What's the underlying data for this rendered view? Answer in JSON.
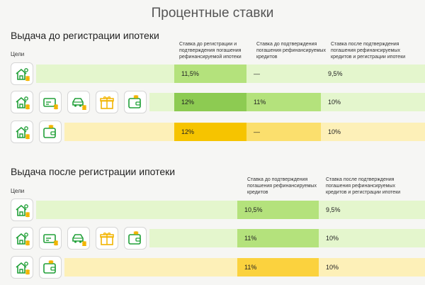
{
  "page_title": "Процентные ставки",
  "sections": [
    {
      "heading": "Выдача до регистрации ипотеки",
      "goals_label": "Цели",
      "col_headers": [
        "Ставка до регистрации и подтверждения погашения рефинансируемой ипотеки",
        "Ставка до подтверждения погашения рефинансируемых кредитов",
        "Ставка после подтверждения погашения рефинансируемых кредитов и регистрации ипотеки"
      ],
      "rows": [
        {
          "icons": [
            "house-icon"
          ],
          "values": [
            "11,5%",
            "—",
            "9,5%"
          ]
        },
        {
          "icons": [
            "house-icon",
            "card-icon",
            "car-icon",
            "gift-icon",
            "wallet-icon"
          ],
          "values": [
            "12%",
            "11%",
            "10%"
          ]
        },
        {
          "icons": [
            "house-icon",
            "wallet-icon"
          ],
          "values": [
            "12%",
            "—",
            "10%"
          ]
        }
      ]
    },
    {
      "heading": "Выдача после регистрации ипотеки",
      "goals_label": "Цели",
      "col_headers": [
        "Ставка до подтверждения погашения рефинансируемых кредитов",
        "Ставка после подтверждения погашения рефинансируемых кредитов и регистрации ипотеки"
      ],
      "rows": [
        {
          "icons": [
            "house-icon"
          ],
          "values": [
            "10,5%",
            "9,5%"
          ]
        },
        {
          "icons": [
            "house-icon",
            "card-icon",
            "car-icon",
            "gift-icon",
            "wallet-icon"
          ],
          "values": [
            "11%",
            "10%"
          ]
        },
        {
          "icons": [
            "house-icon",
            "wallet-icon"
          ],
          "values": [
            "11%",
            "10%"
          ]
        }
      ]
    }
  ],
  "colors": {
    "accent_green": "#21a038",
    "icon_gold": "#f2b400"
  }
}
